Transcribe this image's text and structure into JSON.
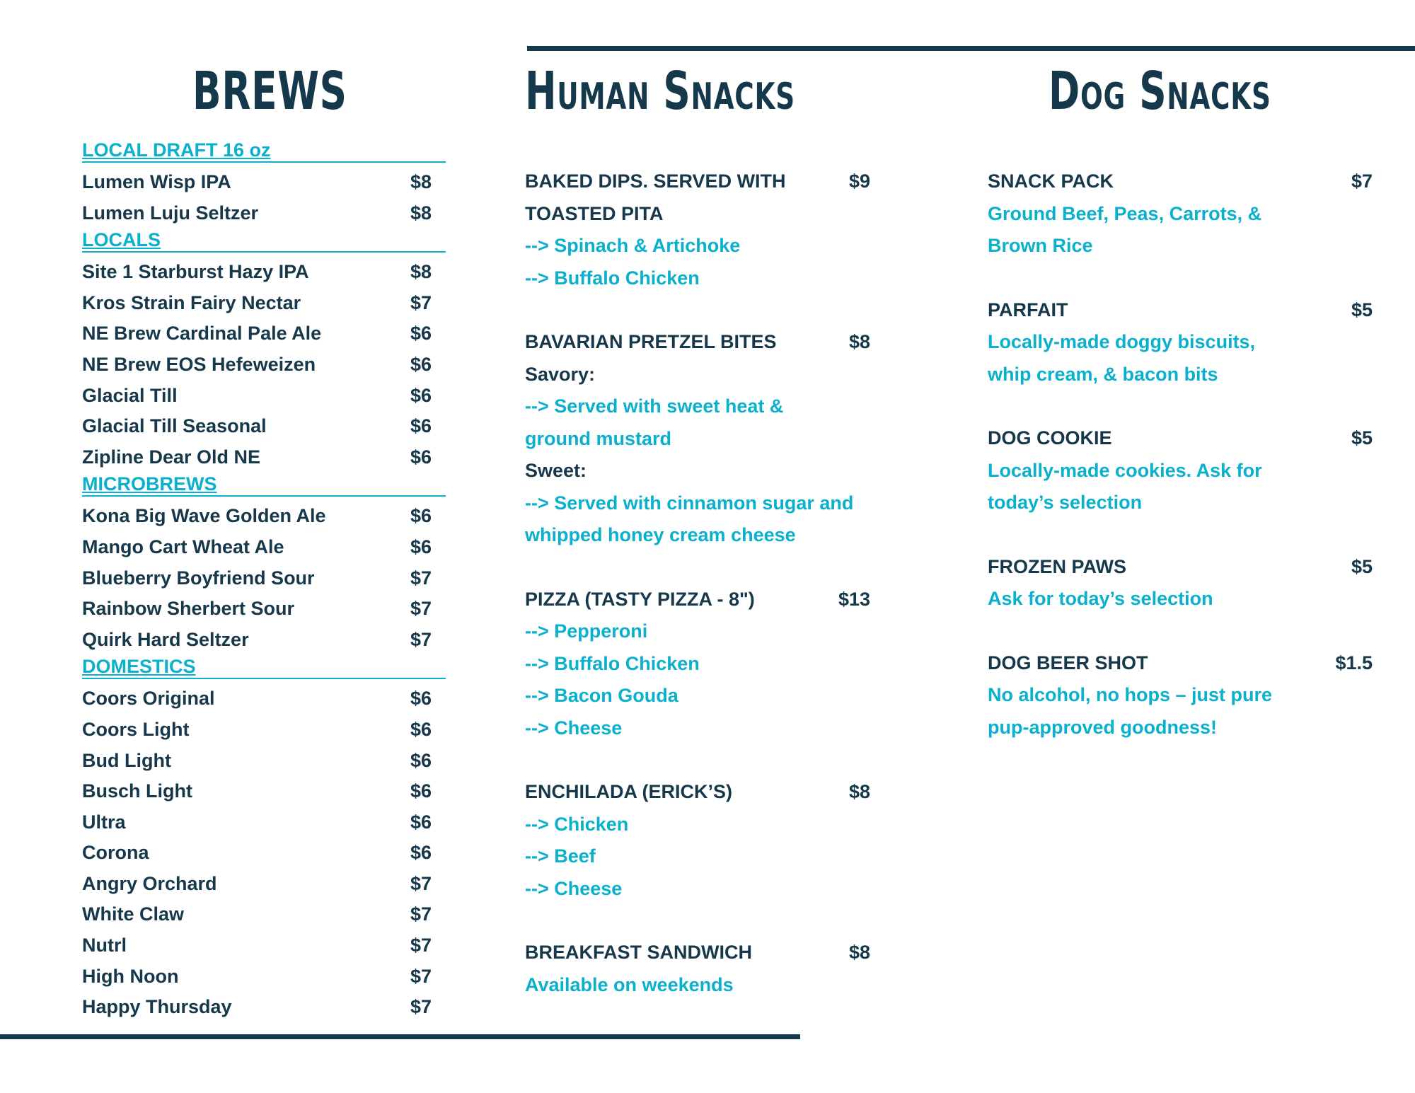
{
  "colors": {
    "navy": "#17384b",
    "cyan": "#0bb0cc",
    "rule": "#15394d",
    "background": "#ffffff"
  },
  "columns": {
    "brews": {
      "title": "BREWS",
      "sections": [
        {
          "heading": "LOCAL DRAFT 16 oz",
          "items": [
            {
              "name": "Lumen Wisp IPA",
              "price": "$8"
            },
            {
              "name": "Lumen Luju Seltzer",
              "price": "$8"
            }
          ]
        },
        {
          "heading": "LOCALS",
          "items": [
            {
              "name": "Site 1 Starburst Hazy IPA",
              "price": "$8"
            },
            {
              "name": "Kros Strain Fairy Nectar",
              "price": "$7"
            },
            {
              "name": "NE Brew Cardinal Pale Ale",
              "price": "$6"
            },
            {
              "name": "NE Brew EOS Hefeweizen",
              "price": "$6"
            },
            {
              "name": "Glacial Till",
              "price": "$6"
            },
            {
              "name": "Glacial Till Seasonal",
              "price": "$6"
            },
            {
              "name": "Zipline Dear Old NE",
              "price": "$6"
            }
          ]
        },
        {
          "heading": "MICROBREWS",
          "items": [
            {
              "name": "Kona Big Wave Golden Ale",
              "price": "$6"
            },
            {
              "name": "Mango Cart Wheat Ale",
              "price": "$6"
            },
            {
              "name": "Blueberry Boyfriend Sour",
              "price": "$7"
            },
            {
              "name": "Rainbow Sherbert Sour",
              "price": "$7"
            },
            {
              "name": "Quirk Hard Seltzer",
              "price": "$7"
            }
          ]
        },
        {
          "heading": "DOMESTICS",
          "items": [
            {
              "name": "Coors Original",
              "price": "$6"
            },
            {
              "name": "Coors Light",
              "price": "$6"
            },
            {
              "name": "Bud Light",
              "price": "$6"
            },
            {
              "name": "Busch Light",
              "price": "$6"
            },
            {
              "name": "Ultra",
              "price": "$6"
            },
            {
              "name": "Corona",
              "price": "$6"
            },
            {
              "name": "Angry Orchard",
              "price": "$7"
            },
            {
              "name": "White Claw",
              "price": "$7"
            },
            {
              "name": "Nutrl",
              "price": "$7"
            },
            {
              "name": "High Noon",
              "price": "$7"
            },
            {
              "name": "Happy Thursday",
              "price": "$7"
            }
          ]
        }
      ]
    },
    "human_snacks": {
      "title": "Human Snacks",
      "items": [
        {
          "title": "BAKED DIPS. SERVED WITH TOASTED PITA",
          "price": "$9",
          "lines": [
            {
              "text": "--> Spinach & Artichoke",
              "style": "cyan"
            },
            {
              "text": "--> Buffalo Chicken",
              "style": "cyan"
            }
          ]
        },
        {
          "title": "BAVARIAN PRETZEL BITES",
          "price": "$8",
          "lines": [
            {
              "text": "Savory:",
              "style": "dark"
            },
            {
              "text": "--> Served with sweet heat & ground mustard",
              "style": "cyan"
            },
            {
              "text": "Sweet:",
              "style": "dark"
            },
            {
              "text": "--> Served with cinnamon sugar and whipped honey cream cheese",
              "style": "cyan"
            }
          ]
        },
        {
          "title": "PIZZA (TASTY PIZZA - 8\")",
          "price": "$13",
          "lines": [
            {
              "text": "--> Pepperoni",
              "style": "cyan"
            },
            {
              "text": "--> Buffalo Chicken",
              "style": "cyan"
            },
            {
              "text": "--> Bacon Gouda",
              "style": "cyan"
            },
            {
              "text": "--> Cheese",
              "style": "cyan"
            }
          ]
        },
        {
          "title": "ENCHILADA (ERICK’S)",
          "price": "$8",
          "lines": [
            {
              "text": "--> Chicken",
              "style": "cyan"
            },
            {
              "text": "--> Beef",
              "style": "cyan"
            },
            {
              "text": "--> Cheese",
              "style": "cyan"
            }
          ]
        },
        {
          "title": "BREAKFAST SANDWICH",
          "price": "$8",
          "lines": [
            {
              "text": "Available on weekends",
              "style": "cyan"
            }
          ]
        }
      ]
    },
    "dog_snacks": {
      "title": "Dog Snacks",
      "items": [
        {
          "title": "SNACK PACK",
          "price": "$7",
          "lines": [
            {
              "text": "Ground Beef, Peas, Carrots, & Brown Rice",
              "style": "cyan"
            }
          ]
        },
        {
          "title": "PARFAIT",
          "price": "$5",
          "lines": [
            {
              "text": "Locally-made doggy biscuits, whip cream, & bacon bits",
              "style": "cyan"
            }
          ]
        },
        {
          "title": "DOG COOKIE",
          "price": "$5",
          "lines": [
            {
              "text": "Locally-made cookies. Ask for today’s selection",
              "style": "cyan"
            }
          ]
        },
        {
          "title": "FROZEN PAWS",
          "price": "$5",
          "lines": [
            {
              "text": "Ask for today’s selection",
              "style": "cyan"
            }
          ]
        },
        {
          "title": "DOG BEER SHOT",
          "price": "$1.5",
          "lines": [
            {
              "text": "No alcohol, no hops – just pure pup-approved goodness!",
              "style": "cyan"
            }
          ]
        }
      ]
    }
  }
}
